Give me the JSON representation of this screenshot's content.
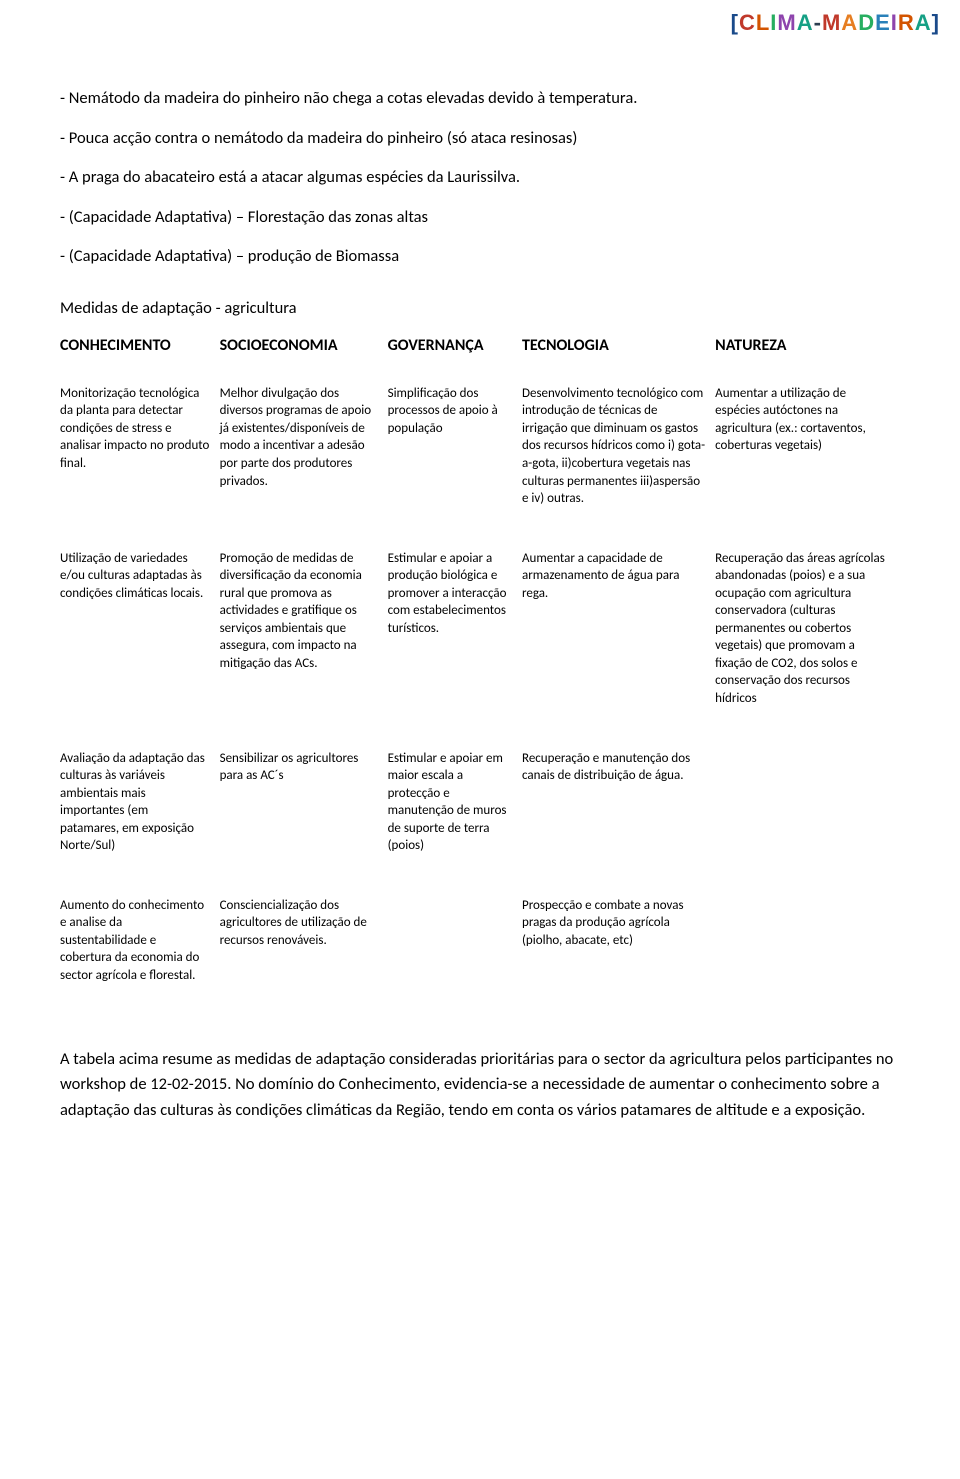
{
  "header": {
    "logo_raw": "[CLIMA-MADEIRA]"
  },
  "intro": {
    "bullets": [
      "- Nemátodo da madeira do pinheiro não chega a cotas elevadas devido à temperatura.",
      "- Pouca acção contra o nemátodo da madeira do pinheiro (só ataca resinosas)",
      "- A praga do abacateiro está a atacar algumas espécies da Laurissilva.",
      "- (Capacidade Adaptativa) – Florestação das zonas altas",
      "- (Capacidade Adaptativa) – produção de Biomassa"
    ]
  },
  "section_title": "Medidas de adaptação - agricultura",
  "table": {
    "headers": [
      "CONHECIMENTO",
      "SOCIOECONOMIA",
      "GOVERNANÇA",
      "TECNOLOGIA",
      "NATUREZA"
    ],
    "rows": [
      {
        "c0": "Monitorização tecnológica da planta para detectar condições de stress e analisar impacto no produto final.",
        "c1": "Melhor divulgação dos diversos programas de apoio já existentes/disponíveis de modo a incentivar a adesão por parte dos produtores privados.",
        "c2": "Simplificação dos processos de apoio à população",
        "c3": "Desenvolvimento tecnológico com introdução de técnicas de irrigação que diminuam os gastos dos recursos hídricos como i) gota-a-gota, ii)cobertura vegetais nas culturas permanentes iii)aspersão e iv) outras.",
        "c4": "Aumentar a utilização de espécies autóctones na agricultura (ex.: cortaventos, coberturas vegetais)"
      },
      {
        "c0": "Utilização de variedades e/ou culturas adaptadas às condições climáticas locais.",
        "c1": "Promoção de medidas de diversificação da economia rural que promova as actividades e gratifique os serviços ambientais que assegura, com impacto na mitigação das ACs.",
        "c2": "Estimular e apoiar a produção biológica e promover a interacção com estabelecimentos turísticos.",
        "c3": "Aumentar a capacidade de armazenamento de água para rega.",
        "c4": "Recuperação das áreas agrícolas abandonadas (poios) e a sua ocupação com agricultura conservadora (culturas permanentes ou cobertos vegetais) que promovam a fixação de CO2, dos solos e conservação dos recursos hídricos"
      },
      {
        "c0": "Avaliação da adaptação das culturas às variáveis ambientais mais importantes (em patamares, em exposição Norte/Sul)",
        "c1": "Sensibilizar os agricultores para as AC´s",
        "c2": "Estimular e apoiar em maior escala a protecção e manutenção de muros de suporte de terra (poios)",
        "c3": "Recuperação e manutenção dos canais de distribuição de água.",
        "c4": ""
      },
      {
        "c0": "Aumento do conhecimento e analise da sustentabilidade e cobertura da economia do sector agrícola e florestal.",
        "c1": "Consciencialização dos agricultores de utilização de recursos renováveis.",
        "c2": "",
        "c3": "Prospecção e combate a novas pragas da produção agrícola (piolho, abacate, etc)",
        "c4": ""
      }
    ]
  },
  "outro": "A tabela acima resume as medidas de adaptação consideradas prioritárias para o sector da agricultura pelos participantes no workshop de 12-02-2015. No domínio do Conhecimento, evidencia-se a necessidade de aumentar o conhecimento sobre a adaptação das culturas às condições climáticas da Região, tendo em conta os vários patamares de altitude e a exposição."
}
